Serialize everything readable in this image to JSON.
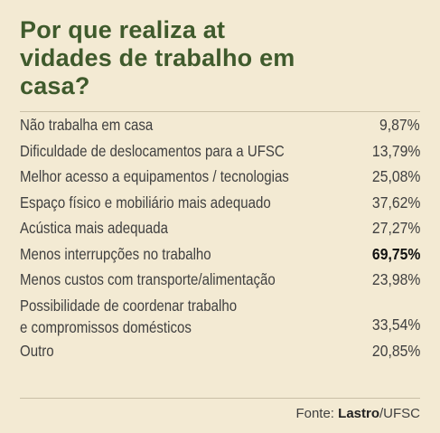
{
  "chart_data": {
    "type": "table",
    "title": "Por que realiza atividades de trabalho em casa?",
    "rows": [
      {
        "label": "Não trabalha em casa",
        "value": "9,87%"
      },
      {
        "label": "Dificuldade de deslocamentos para a UFSC",
        "value": "13,79%"
      },
      {
        "label": "Melhor acesso a equipamentos / tecnologias",
        "value": "25,08%"
      },
      {
        "label": "Espaço físico e mobiliário mais adequado",
        "value": "37,62%"
      },
      {
        "label": "Acústica mais adequada",
        "value": "27,27%"
      },
      {
        "label": "Menos interrupções no trabalho",
        "value": "69,75%"
      },
      {
        "label": "Menos custos com transporte/alimentação",
        "value": "23,98%"
      },
      {
        "label_line1": "Possibilidade de coordenar trabalho",
        "label_line2": "e compromissos domésticos",
        "value": "33,54%"
      },
      {
        "label": "Outro",
        "value": "20,85%"
      }
    ],
    "highlight_color": "#111111",
    "title_color": "#3f5a2c"
  },
  "footer": {
    "prefix": "Fonte: ",
    "brand": "Lastro",
    "suffix": "/UFSC"
  }
}
